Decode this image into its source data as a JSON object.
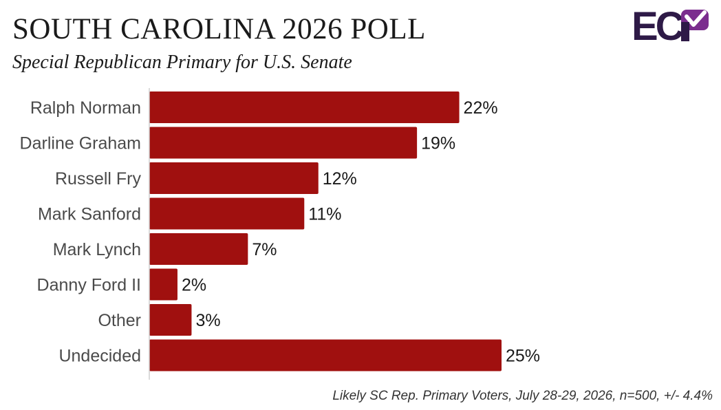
{
  "header": {
    "title": "SOUTH CAROLINA 2026 POLL",
    "subtitle": "Special Republican Primary for U.S. Senate"
  },
  "logo": {
    "text": "ECP",
    "colors": {
      "dark": "#2e1a47",
      "accent": "#7b2d8e"
    }
  },
  "footnote": "Likely SC Rep. Primary Voters, July 28-29, 2026, n=500, +/- 4.4%",
  "chart_data": {
    "type": "bar",
    "orientation": "horizontal",
    "title": "SOUTH CAROLINA 2026 POLL",
    "subtitle": "Special Republican Primary for U.S. Senate",
    "categories": [
      "Ralph Norman",
      "Darline Graham",
      "Russell Fry",
      "Mark Sanford",
      "Mark Lynch",
      "Danny Ford II",
      "Other",
      "Undecided"
    ],
    "values": [
      22,
      19,
      12,
      11,
      7,
      2,
      3,
      25
    ],
    "value_labels": [
      "22%",
      "19%",
      "12%",
      "11%",
      "7%",
      "2%",
      "3%",
      "25%"
    ],
    "unit": "%",
    "xlim": [
      0,
      25
    ],
    "bar_color": "#a0100f",
    "grid": false,
    "legend": "none"
  }
}
